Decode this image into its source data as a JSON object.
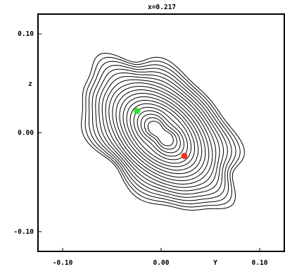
{
  "chart_data": {
    "type": "contour",
    "title": "x=0.217",
    "xlabel": "Y",
    "ylabel": "z",
    "xlim": [
      -0.125,
      0.125
    ],
    "ylim": [
      -0.12,
      0.12
    ],
    "x_ticks": [
      {
        "value": -0.1,
        "label": "-0.10"
      },
      {
        "value": 0.0,
        "label": "0.00"
      },
      {
        "value": 0.1,
        "label": "0.10"
      }
    ],
    "y_ticks": [
      {
        "value": 0.1,
        "label": "0.10"
      },
      {
        "value": 0.0,
        "label": "0.00"
      },
      {
        "value": -0.1,
        "label": "-0.10"
      }
    ],
    "contour_levels": 20,
    "markers": [
      {
        "name": "green point",
        "x": -0.0245,
        "y": 0.022,
        "color": "#33dd33"
      },
      {
        "name": "red point",
        "x": 0.0235,
        "y": -0.0235,
        "color": "#ee3322"
      }
    ],
    "line_color": "#000000"
  }
}
